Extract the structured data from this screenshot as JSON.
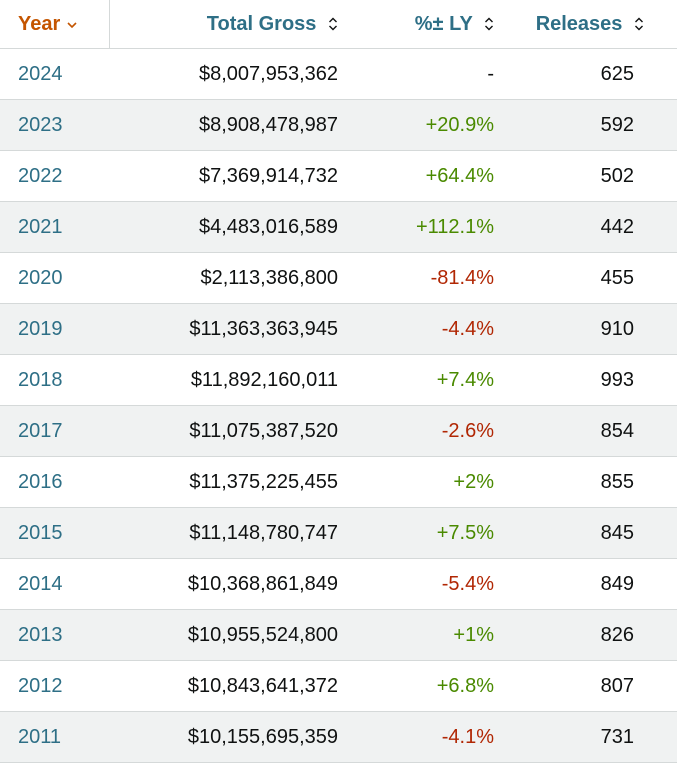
{
  "header": {
    "year": "Year",
    "gross": "Total Gross",
    "pct": "%± LY",
    "releases": "Releases"
  },
  "rows": [
    {
      "year": "2024",
      "gross": "$8,007,953,362",
      "pct": "-",
      "releases": "625",
      "trend": "neutral"
    },
    {
      "year": "2023",
      "gross": "$8,908,478,987",
      "pct": "+20.9%",
      "releases": "592",
      "trend": "pos"
    },
    {
      "year": "2022",
      "gross": "$7,369,914,732",
      "pct": "+64.4%",
      "releases": "502",
      "trend": "pos"
    },
    {
      "year": "2021",
      "gross": "$4,483,016,589",
      "pct": "+112.1%",
      "releases": "442",
      "trend": "pos"
    },
    {
      "year": "2020",
      "gross": "$2,113,386,800",
      "pct": "-81.4%",
      "releases": "455",
      "trend": "neg"
    },
    {
      "year": "2019",
      "gross": "$11,363,363,945",
      "pct": "-4.4%",
      "releases": "910",
      "trend": "neg"
    },
    {
      "year": "2018",
      "gross": "$11,892,160,011",
      "pct": "+7.4%",
      "releases": "993",
      "trend": "pos"
    },
    {
      "year": "2017",
      "gross": "$11,075,387,520",
      "pct": "-2.6%",
      "releases": "854",
      "trend": "neg"
    },
    {
      "year": "2016",
      "gross": "$11,375,225,455",
      "pct": "+2%",
      "releases": "855",
      "trend": "pos"
    },
    {
      "year": "2015",
      "gross": "$11,148,780,747",
      "pct": "+7.5%",
      "releases": "845",
      "trend": "pos"
    },
    {
      "year": "2014",
      "gross": "$10,368,861,849",
      "pct": "-5.4%",
      "releases": "849",
      "trend": "neg"
    },
    {
      "year": "2013",
      "gross": "$10,955,524,800",
      "pct": "+1%",
      "releases": "826",
      "trend": "pos"
    },
    {
      "year": "2012",
      "gross": "$10,843,641,372",
      "pct": "+6.8%",
      "releases": "807",
      "trend": "pos"
    },
    {
      "year": "2011",
      "gross": "$10,155,695,359",
      "pct": "-4.1%",
      "releases": "731",
      "trend": "neg"
    }
  ],
  "colors": {
    "link": "#2e6f86",
    "active_sort": "#c45500",
    "positive": "#4a8a00",
    "negative": "#b12704"
  }
}
